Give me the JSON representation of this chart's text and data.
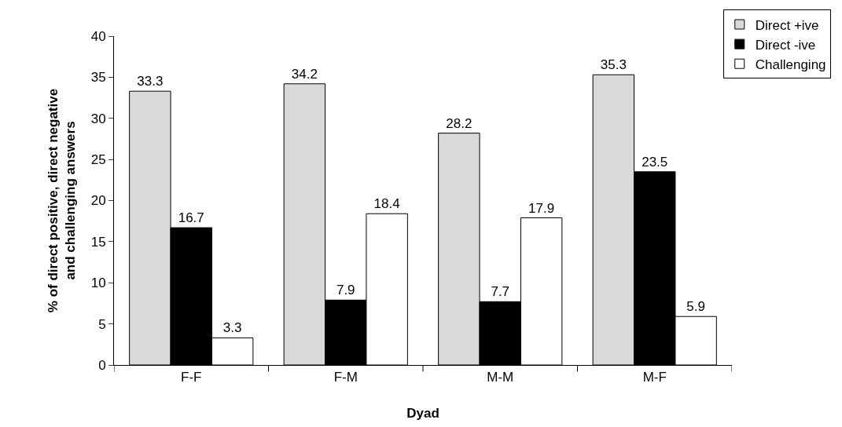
{
  "chart_data": {
    "type": "bar",
    "xlabel": "Dyad",
    "ylabel": "% of direct positive, direct negative\nand challenging answers",
    "categories": [
      "F-F",
      "F-M",
      "M-M",
      "M-F"
    ],
    "series": [
      {
        "name": "Direct +ive",
        "color": "#d9d9d9",
        "values": [
          33.3,
          34.2,
          28.2,
          35.3
        ]
      },
      {
        "name": "Direct -ive",
        "color": "#000000",
        "values": [
          16.7,
          7.9,
          7.7,
          23.5
        ]
      },
      {
        "name": "Challenging",
        "color": "#ffffff",
        "values": [
          3.3,
          18.4,
          17.9,
          5.9
        ]
      }
    ],
    "ylim": [
      0,
      40
    ],
    "yticks": [
      0,
      5,
      10,
      15,
      20,
      25,
      30,
      35,
      40
    ],
    "data_labels": true,
    "legend": "top right"
  }
}
